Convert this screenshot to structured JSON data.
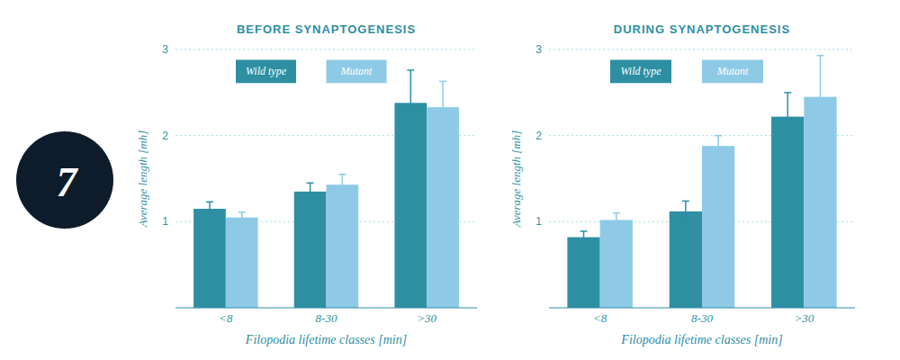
{
  "chart_data": [
    {
      "type": "bar",
      "title": "BEFORE SYNAPTOGENESIS",
      "annotations": [
        "7"
      ],
      "categories": [
        "<8",
        "8-30",
        ">30"
      ],
      "xlabel": "Filopodia lifetime classes [min]",
      "ylabel": "Average length [mh]",
      "series": [
        {
          "name": "Wild type",
          "color": "#2e8fa3",
          "values": [
            1.15,
            1.35,
            2.38
          ],
          "errors": [
            0.08,
            0.1,
            0.38
          ]
        },
        {
          "name": "Mutant",
          "color": "#8ecae6",
          "values": [
            1.05,
            1.43,
            2.33
          ],
          "errors": [
            0.06,
            0.12,
            0.3
          ]
        }
      ],
      "ylim": [
        0,
        3.0
      ],
      "yticks": [
        1,
        2,
        3
      ],
      "grid": true,
      "legend": "top"
    },
    {
      "type": "bar",
      "title": "DURING SYNAPTOGENESIS",
      "categories": [
        "<8",
        "8-30",
        ">30"
      ],
      "xlabel": "Filopodia lifetime classes [min]",
      "ylabel": "Average length [mh]",
      "series": [
        {
          "name": "Wild type",
          "color": "#2e8fa3",
          "values": [
            0.82,
            1.12,
            2.22
          ],
          "errors": [
            0.07,
            0.12,
            0.28
          ]
        },
        {
          "name": "Mutant",
          "color": "#8ecae6",
          "values": [
            1.02,
            1.88,
            2.45
          ],
          "errors": [
            0.08,
            0.12,
            0.48
          ]
        }
      ],
      "ylim": [
        0,
        3.0
      ],
      "yticks": [
        1,
        2,
        3
      ],
      "grid": true,
      "legend": "top"
    }
  ]
}
